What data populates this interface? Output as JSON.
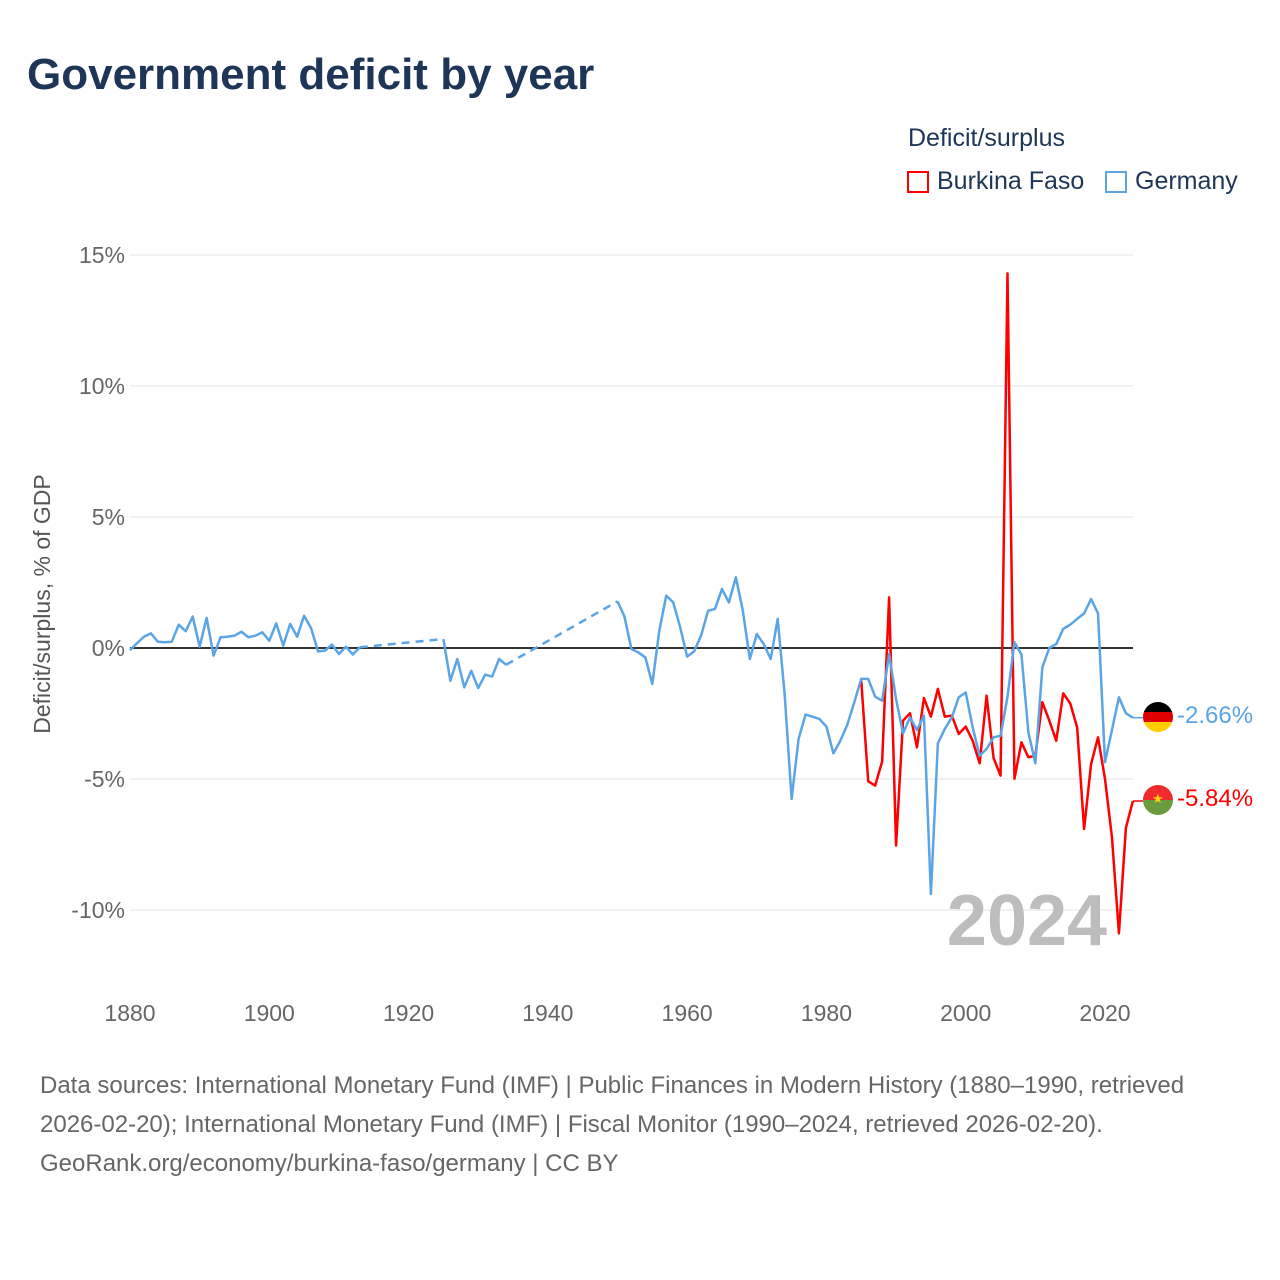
{
  "title": "Government deficit by year",
  "footer": {
    "sources": "Data sources: International Monetary Fund (IMF) | Public Finances in Modern History (1880–1990, retrieved 2026-02-20); International Monetary Fund (IMF) | Fiscal Monitor (1990–2024, retrieved 2026-02-20).",
    "credit": "GeoRank.org/economy/burkina-faso/germany | CC BY"
  },
  "chart_data": {
    "type": "line",
    "title": "Government deficit by year",
    "xlabel": "",
    "ylabel": "Deficit/surplus, % of GDP",
    "xlim": [
      1880,
      2024
    ],
    "ylim": [
      -12.5,
      15
    ],
    "xticks": [
      1880,
      1900,
      1920,
      1940,
      1960,
      1980,
      2000,
      2020
    ],
    "xtick_labels": [
      "1880",
      "1900",
      "1920",
      "1940",
      "1960",
      "1980",
      "2000",
      "2020"
    ],
    "yticks": [
      15,
      10,
      5,
      0,
      -5,
      -10
    ],
    "ytick_labels": [
      "15%",
      "10%",
      "5%",
      "0%",
      "-5%",
      "-10%"
    ],
    "grid": true,
    "legend_title": "Deficit/surplus",
    "legend_placement": "top-right",
    "year_label": "2024",
    "series": [
      {
        "name": "Burkina Faso",
        "color": "#ff0000",
        "end_label": "-5.84%",
        "start": 1985,
        "values": [
          -1.25,
          -5.09,
          -5.25,
          -4.33,
          1.93,
          -7.54,
          -2.77,
          -2.49,
          -3.79,
          -1.91,
          -2.62,
          -1.56,
          -2.62,
          -2.58,
          -3.28,
          -3.0,
          -3.54,
          -4.4,
          -1.82,
          -4.2,
          -4.87,
          14.3,
          -4.99,
          -3.6,
          -4.17,
          -4.11,
          -2.07,
          -2.77,
          -3.54,
          -1.73,
          -2.11,
          -3.03,
          -6.91,
          -4.43,
          -3.41,
          -5.0,
          -7.23,
          -10.89,
          -6.87,
          -5.84
        ]
      },
      {
        "name": "Germany",
        "color": "#5ba4e6",
        "end_label": "-2.66%",
        "start": 1880,
        "values": [
          -0.08,
          0.18,
          0.43,
          0.56,
          0.24,
          0.22,
          0.24,
          0.89,
          0.64,
          1.2,
          0.05,
          1.15,
          -0.29,
          0.41,
          0.43,
          0.47,
          0.62,
          0.41,
          0.47,
          0.6,
          0.28,
          0.94,
          0.09,
          0.92,
          0.43,
          1.23,
          0.76,
          -0.13,
          -0.1,
          0.13,
          -0.23,
          0.05,
          -0.25,
          0.03,
          null,
          null,
          null,
          null,
          null,
          null,
          null,
          null,
          null,
          null,
          null,
          0.34,
          -1.25,
          -0.42,
          -1.5,
          -0.87,
          -1.53,
          -1.02,
          -1.09,
          -0.42,
          -0.64,
          null,
          null,
          null,
          null,
          null,
          null,
          null,
          null,
          null,
          null,
          null,
          null,
          null,
          null,
          null,
          1.78,
          1.2,
          -0.04,
          -0.17,
          -0.36,
          -1.37,
          0.66,
          2.0,
          1.74,
          0.79,
          -0.33,
          -0.13,
          0.47,
          1.42,
          1.49,
          2.25,
          1.74,
          2.7,
          1.42,
          -0.42,
          0.53,
          0.15,
          -0.42,
          1.11,
          -1.76,
          -5.76,
          -3.47,
          -2.54,
          -2.62,
          -2.71,
          -3.0,
          -4.02,
          -3.54,
          -2.93,
          -2.07,
          -1.18,
          -1.18,
          -1.86,
          -2.01,
          -0.23,
          -1.95,
          -3.26,
          -2.65,
          -3.13,
          -2.58,
          -9.39,
          -3.64,
          -3.09,
          -2.65,
          -1.88,
          -1.7,
          -3.03,
          -4.11,
          -3.85,
          -3.41,
          -3.35,
          -1.86,
          0.22,
          -0.25,
          -3.22,
          -4.4,
          -0.74,
          0.0,
          0.15,
          0.73,
          0.89,
          1.11,
          1.32,
          1.87,
          1.32,
          -4.36,
          -3.13,
          -1.88,
          -2.49,
          -2.66
        ]
      }
    ]
  }
}
